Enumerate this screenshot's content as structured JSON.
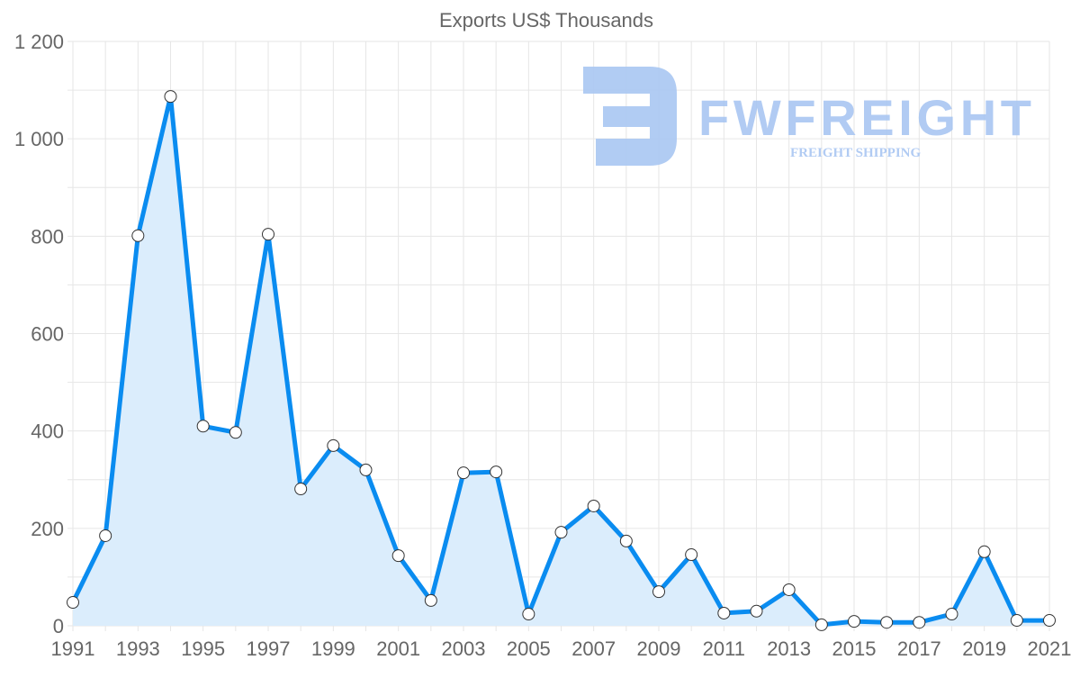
{
  "chart_data": {
    "type": "area",
    "title": "Exports US$ Thousands",
    "xlabel": "",
    "ylabel": "",
    "x": [
      1991,
      1992,
      1993,
      1994,
      1995,
      1996,
      1997,
      1998,
      1999,
      2000,
      2001,
      2002,
      2003,
      2004,
      2005,
      2006,
      2007,
      2008,
      2009,
      2010,
      2011,
      2012,
      2013,
      2014,
      2015,
      2016,
      2017,
      2018,
      2019,
      2020,
      2021
    ],
    "series": [
      {
        "name": "Exports US$ Thousands",
        "values": [
          48,
          185,
          801,
          1087,
          410,
          397,
          804,
          281,
          370,
          320,
          144,
          52,
          314,
          316,
          24,
          192,
          246,
          174,
          70,
          146,
          26,
          30,
          74,
          2,
          9,
          7,
          7,
          24,
          152,
          11,
          11
        ]
      }
    ],
    "xlim": [
      1991,
      2021
    ],
    "ylim": [
      0,
      1200
    ],
    "x_tick_labels": [
      "1991",
      "1993",
      "1995",
      "1997",
      "1999",
      "2001",
      "2003",
      "2005",
      "2007",
      "2009",
      "2011",
      "2013",
      "2015",
      "2017",
      "2019",
      "2021"
    ],
    "y_tick_labels": [
      "0",
      "200",
      "400",
      "600",
      "800",
      "1 000",
      "1 200"
    ],
    "y_ticks": [
      0,
      200,
      400,
      600,
      800,
      1000,
      1200
    ],
    "grid": true,
    "legend": "none",
    "colors": {
      "line": "#0a8cf0",
      "fill": "#dbedfc",
      "marker_fill": "#ffffff",
      "marker_stroke": "#333333",
      "grid": "#e6e6e6",
      "text": "#666666",
      "watermark": "#a9c6f2"
    }
  },
  "watermark": {
    "brand": "FWFREIGHT",
    "tagline": "FREIGHT SHIPPING"
  }
}
